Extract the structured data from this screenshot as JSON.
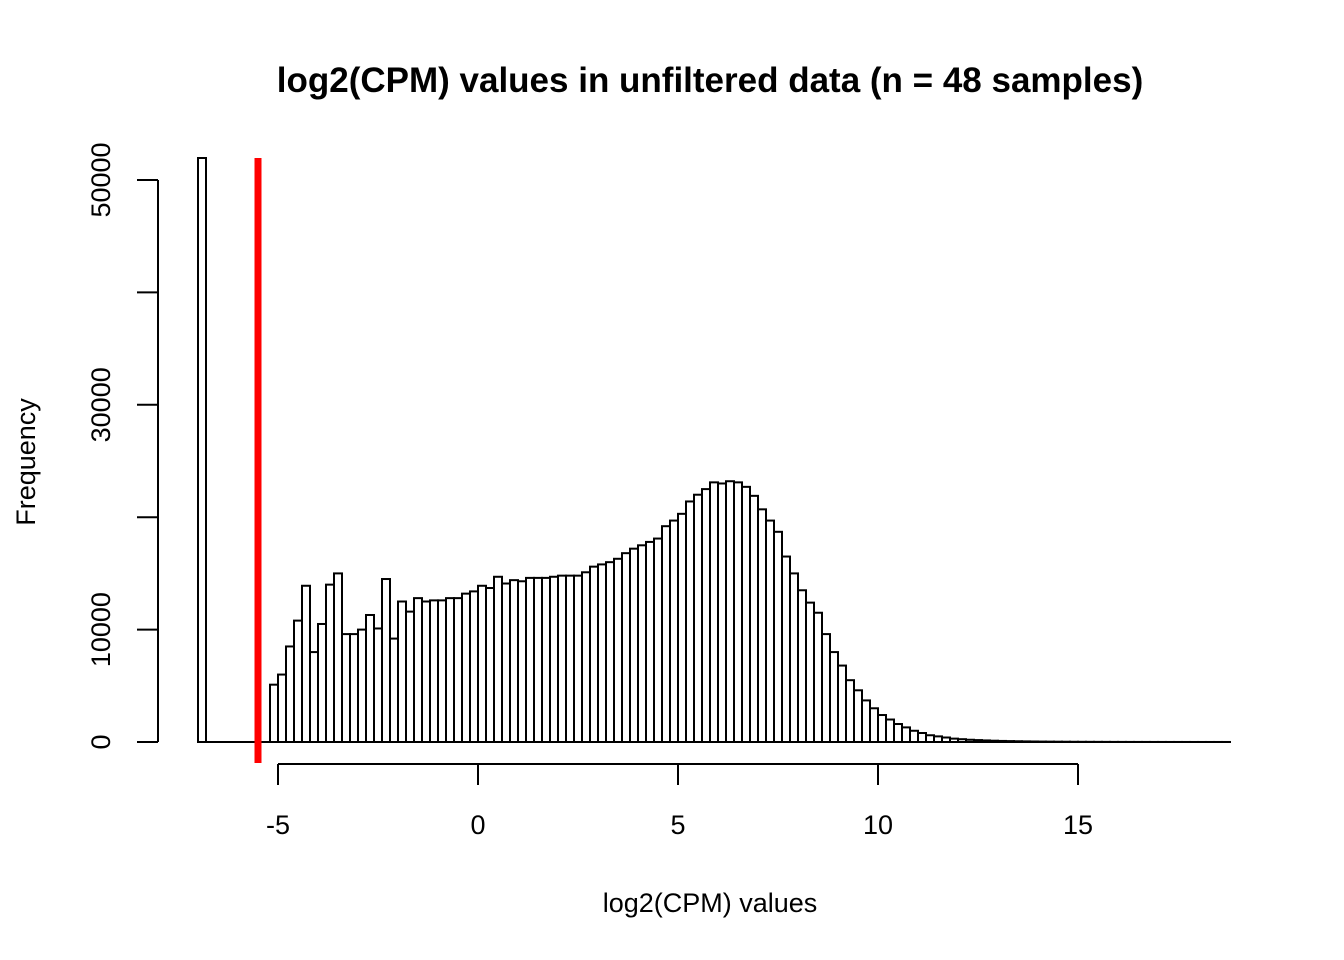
{
  "chart_data": {
    "type": "bar",
    "title": "log2(CPM) values in unfiltered data (n = 48 samples)",
    "xlabel": "log2(CPM) values",
    "ylabel": "Frequency",
    "xlim": [
      -7.25,
      18.6
    ],
    "ylim": [
      0,
      52000
    ],
    "xticks": [
      -5,
      0,
      5,
      10,
      15
    ],
    "xtick_labels": [
      "-5",
      "0",
      "5",
      "10",
      "15"
    ],
    "yticks": [
      0,
      10000,
      20000,
      30000,
      40000,
      50000
    ],
    "ytick_labels": [
      "0",
      "10000",
      "",
      "30000",
      "",
      "50000"
    ],
    "grid": false,
    "bin_width": 0.2,
    "first_bar": {
      "x_start": -7.0,
      "x_end": -6.8,
      "value": 52000,
      "note_clipped": true
    },
    "x_start": -5.2,
    "values": [
      5100,
      6000,
      8500,
      10800,
      13900,
      8000,
      10500,
      14000,
      15000,
      9600,
      9600,
      10000,
      11300,
      10100,
      14500,
      9200,
      12500,
      11600,
      12800,
      12500,
      12600,
      12600,
      12800,
      12800,
      13200,
      13400,
      13900,
      13700,
      14700,
      14100,
      14400,
      14300,
      14600,
      14600,
      14600,
      14700,
      14800,
      14800,
      14800,
      15100,
      15600,
      15800,
      16000,
      16300,
      16800,
      17200,
      17500,
      17800,
      18100,
      19200,
      19700,
      20300,
      21400,
      22000,
      22500,
      23100,
      23000,
      23200,
      23100,
      22700,
      21900,
      20700,
      19700,
      18700,
      16500,
      15000,
      13500,
      12400,
      11500,
      9600,
      8000,
      6800,
      5500,
      4600,
      3700,
      3000,
      2400,
      2000,
      1600,
      1300,
      1000,
      800,
      600,
      500,
      400,
      300,
      250,
      200,
      170,
      140,
      115,
      95,
      80,
      66,
      55,
      46,
      38,
      32,
      27,
      23,
      19,
      16,
      14,
      12,
      10,
      8,
      7,
      6,
      5,
      5,
      4,
      4,
      3,
      3,
      3,
      2,
      2,
      2,
      2,
      2
    ],
    "threshold_line": {
      "x": -5.5,
      "color": "#ff0000"
    }
  }
}
